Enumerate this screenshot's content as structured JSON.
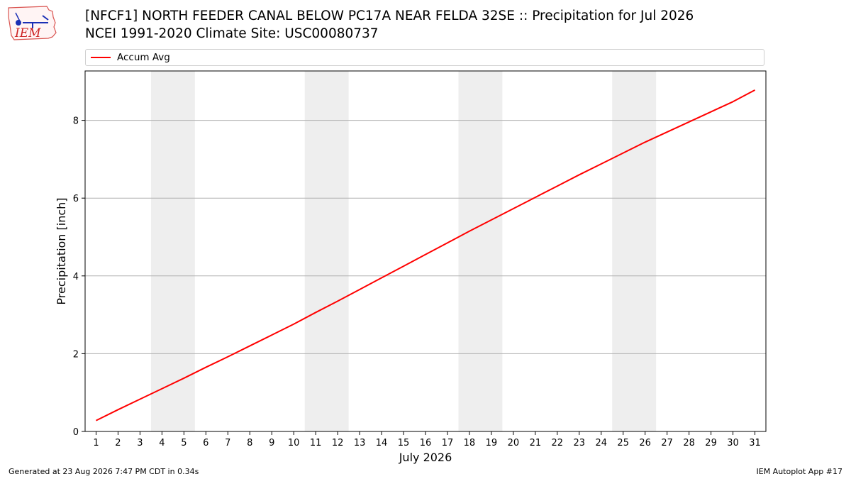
{
  "header": {
    "logo_text": "IEM",
    "title_line1": "[NFCF1] NORTH FEEDER CANAL BELOW PC17A NEAR FELDA 32SE :: Precipitation for Jul 2026",
    "title_line2": "NCEI 1991-2020 Climate Site: USC00080737"
  },
  "legend": {
    "label": "Accum Avg",
    "color": "#ff0000"
  },
  "footer": {
    "generated": "Generated at 23 Aug 2026 7:47 PM CDT in 0.34s",
    "app": "IEM Autoplot App #17"
  },
  "chart_data": {
    "type": "line",
    "xlabel": "July 2026",
    "ylabel": "Precipitation [inch]",
    "x": [
      1,
      2,
      3,
      4,
      5,
      6,
      7,
      8,
      9,
      10,
      11,
      12,
      13,
      14,
      15,
      16,
      17,
      18,
      19,
      20,
      21,
      22,
      23,
      24,
      25,
      26,
      27,
      28,
      29,
      30,
      31
    ],
    "xlim": [
      0.5,
      31.5
    ],
    "ylim": [
      0,
      9.27
    ],
    "yticks": [
      0,
      2,
      4,
      6,
      8
    ],
    "grid": "y",
    "weekend_bands": [
      [
        3.5,
        5.5
      ],
      [
        10.5,
        12.5
      ],
      [
        17.5,
        19.5
      ],
      [
        24.5,
        26.5
      ]
    ],
    "band_color": "#eeeeee",
    "series": [
      {
        "name": "Accum Avg",
        "color": "#ff0000",
        "values": [
          0.28,
          0.56,
          0.83,
          1.1,
          1.37,
          1.65,
          1.92,
          2.2,
          2.48,
          2.76,
          3.06,
          3.35,
          3.65,
          3.95,
          4.25,
          4.55,
          4.85,
          5.15,
          5.44,
          5.73,
          6.02,
          6.31,
          6.6,
          6.88,
          7.16,
          7.44,
          7.7,
          7.96,
          8.22,
          8.48,
          8.78
        ]
      }
    ]
  }
}
